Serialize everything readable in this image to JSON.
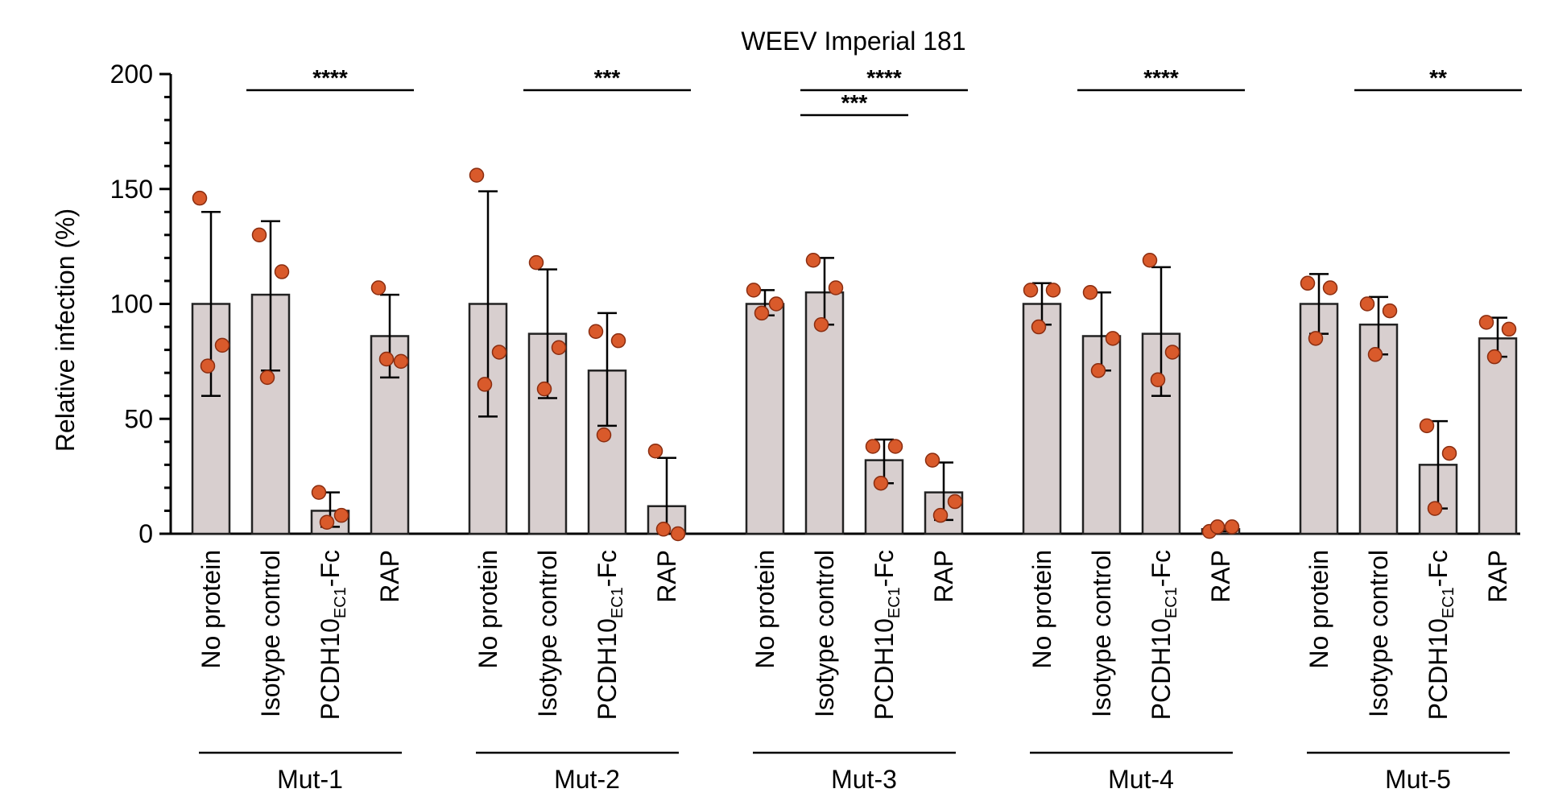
{
  "chart_data": {
    "type": "bar",
    "title": "WEEV Imperial 181",
    "ylabel": "Relative infection (%)",
    "ylim": [
      0,
      200
    ],
    "yticks": [
      0,
      50,
      100,
      150,
      200
    ],
    "categories": [
      {
        "label": "No protein",
        "sub": ""
      },
      {
        "label": "Isotype control",
        "sub": ""
      },
      {
        "label": "PCDH10",
        "sub": "EC1",
        "suffix": "-Fc"
      },
      {
        "label": "RAP",
        "sub": ""
      }
    ],
    "groups": [
      {
        "name": "Mut-1",
        "bars": [
          {
            "mean": 100,
            "err_low": 60,
            "err_high": 140,
            "points": [
              146,
              82,
              73
            ]
          },
          {
            "mean": 104,
            "err_low": 71,
            "err_high": 136,
            "points": [
              130,
              114,
              68
            ]
          },
          {
            "mean": 10,
            "err_low": 3,
            "err_high": 18,
            "points": [
              18,
              8,
              5
            ]
          },
          {
            "mean": 86,
            "err_low": 68,
            "err_high": 104,
            "points": [
              107,
              75,
              76
            ]
          }
        ],
        "significance": [
          {
            "from": 1,
            "to": 3,
            "label": "****",
            "level": 0
          }
        ]
      },
      {
        "name": "Mut-2",
        "bars": [
          {
            "mean": 100,
            "err_low": 51,
            "err_high": 149,
            "points": [
              156,
              79,
              65
            ]
          },
          {
            "mean": 87,
            "err_low": 59,
            "err_high": 115,
            "points": [
              118,
              81,
              63
            ]
          },
          {
            "mean": 71,
            "err_low": 47,
            "err_high": 96,
            "points": [
              88,
              84,
              43
            ]
          },
          {
            "mean": 12,
            "err_low": 0,
            "err_high": 33,
            "points": [
              36,
              0,
              2
            ]
          }
        ],
        "significance": [
          {
            "from": 1,
            "to": 3,
            "label": "***",
            "level": 0
          }
        ]
      },
      {
        "name": "Mut-3",
        "bars": [
          {
            "mean": 100,
            "err_low": 95,
            "err_high": 106,
            "points": [
              106,
              100,
              96
            ]
          },
          {
            "mean": 105,
            "err_low": 91,
            "err_high": 120,
            "points": [
              119,
              107,
              91
            ]
          },
          {
            "mean": 32,
            "err_low": 22,
            "err_high": 41,
            "points": [
              38,
              38,
              22
            ]
          },
          {
            "mean": 18,
            "err_low": 6,
            "err_high": 31,
            "points": [
              32,
              14,
              8
            ]
          }
        ],
        "significance": [
          {
            "from": 1,
            "to": 3,
            "label": "****",
            "level": 0
          },
          {
            "from": 1,
            "to": 2,
            "label": "***",
            "level": 1
          }
        ]
      },
      {
        "name": "Mut-4",
        "bars": [
          {
            "mean": 100,
            "err_low": 91,
            "err_high": 109,
            "points": [
              106,
              106,
              90
            ]
          },
          {
            "mean": 86,
            "err_low": 71,
            "err_high": 105,
            "points": [
              105,
              85,
              71
            ]
          },
          {
            "mean": 87,
            "err_low": 60,
            "err_high": 116,
            "points": [
              119,
              79,
              67
            ]
          },
          {
            "mean": 2,
            "err_low": 1,
            "err_high": 3,
            "points": [
              1,
              3,
              3
            ]
          }
        ],
        "significance": [
          {
            "from": 1,
            "to": 3,
            "label": "****",
            "level": 0
          }
        ]
      },
      {
        "name": "Mut-5",
        "bars": [
          {
            "mean": 100,
            "err_low": 87,
            "err_high": 113,
            "points": [
              109,
              107,
              85
            ]
          },
          {
            "mean": 91,
            "err_low": 78,
            "err_high": 103,
            "points": [
              100,
              97,
              78
            ]
          },
          {
            "mean": 30,
            "err_low": 11,
            "err_high": 49,
            "points": [
              47,
              35,
              11
            ]
          },
          {
            "mean": 85,
            "err_low": 77,
            "err_high": 94,
            "points": [
              92,
              89,
              77
            ]
          }
        ],
        "significance": [
          {
            "from": 1,
            "to": 3,
            "label": "**",
            "level": 0
          }
        ]
      }
    ],
    "colors": {
      "bar": "#d8cfcf",
      "dot": "#d95a2b"
    }
  }
}
